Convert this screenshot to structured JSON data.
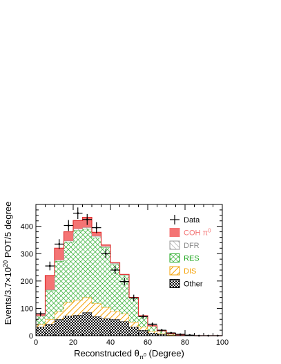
{
  "chart_data": {
    "type": "bar",
    "stacked": true,
    "histogram": true,
    "bin_edges": [
      0,
      5,
      10,
      15,
      20,
      25,
      30,
      35,
      40,
      45,
      50,
      55,
      60,
      65,
      70,
      75,
      80,
      85,
      90,
      95,
      100
    ],
    "xlabel": "Reconstructed θ_π⁰ (Degree)",
    "xlabel_parts": {
      "main": "Reconstructed θ",
      "sub": "π",
      "subsup": "0",
      "unit": " (Degree)"
    },
    "ylabel": "Events/3.7×10²⁰ POT/5 degree",
    "ylabel_parts": {
      "pre": "Events/3.7×10",
      "sup": "20",
      "post": " POT/5 degree"
    },
    "xlim": [
      0,
      100
    ],
    "ylim": [
      0,
      480
    ],
    "xticks": [
      0,
      20,
      40,
      60,
      80,
      100
    ],
    "yticks": [
      0,
      100,
      200,
      300,
      400
    ],
    "legend_position": "top-right",
    "series": [
      {
        "name": "Other",
        "key": "other",
        "color": "#000000",
        "fill": "checker",
        "values": [
          32,
          42,
          60,
          72,
          75,
          85,
          70,
          62,
          60,
          52,
          32,
          20,
          10,
          5,
          2,
          1,
          0,
          0,
          0,
          0
        ]
      },
      {
        "name": "DIS",
        "key": "dis",
        "color": "#f5a000",
        "fill": "hatch",
        "values": [
          10,
          18,
          28,
          50,
          55,
          55,
          48,
          42,
          30,
          28,
          18,
          12,
          6,
          3,
          1,
          0,
          0,
          0,
          0,
          0
        ]
      },
      {
        "name": "RES",
        "key": "res",
        "color": "#1aa51a",
        "fill": "crosshatch",
        "values": [
          30,
          105,
          185,
          220,
          255,
          250,
          240,
          218,
          170,
          140,
          88,
          40,
          20,
          10,
          4,
          2,
          1,
          0,
          0,
          0
        ]
      },
      {
        "name": "DFR",
        "key": "dfr",
        "color": "#999999",
        "fill": "diag",
        "values": [
          0,
          3,
          4,
          5,
          6,
          6,
          6,
          5,
          5,
          3,
          2,
          1,
          0,
          0,
          0,
          0,
          0,
          0,
          0,
          0
        ]
      },
      {
        "name": "COH π⁰",
        "key": "coh",
        "color": "#f47474",
        "fill": "solid",
        "label_parts": {
          "main": "COH π",
          "sup": "0"
        },
        "values": [
          8,
          52,
          43,
          33,
          30,
          37,
          14,
          5,
          2,
          1,
          0,
          0,
          0,
          0,
          0,
          0,
          0,
          0,
          0,
          0
        ]
      }
    ],
    "data_points": {
      "name": "Data",
      "x": [
        2.5,
        7.5,
        12.5,
        17.5,
        22.5,
        27.5,
        32.5,
        37.5,
        42.5,
        47.5,
        52.5,
        57.5,
        62.5,
        67.5,
        72.5,
        77.5,
        82.5,
        87.5,
        92.5,
        97.5
      ],
      "y": [
        80,
        255,
        335,
        403,
        448,
        425,
        395,
        300,
        240,
        198,
        138,
        70,
        42,
        20,
        10,
        5,
        2,
        0,
        0,
        0
      ],
      "yerr": [
        9,
        16,
        18,
        20,
        21,
        20,
        20,
        17,
        15,
        14,
        12,
        8,
        6.5,
        4.5,
        3.2,
        2.2,
        1.4,
        0,
        0,
        0
      ]
    },
    "legend_order": [
      "data",
      "coh",
      "dfr",
      "res",
      "dis",
      "other"
    ]
  }
}
